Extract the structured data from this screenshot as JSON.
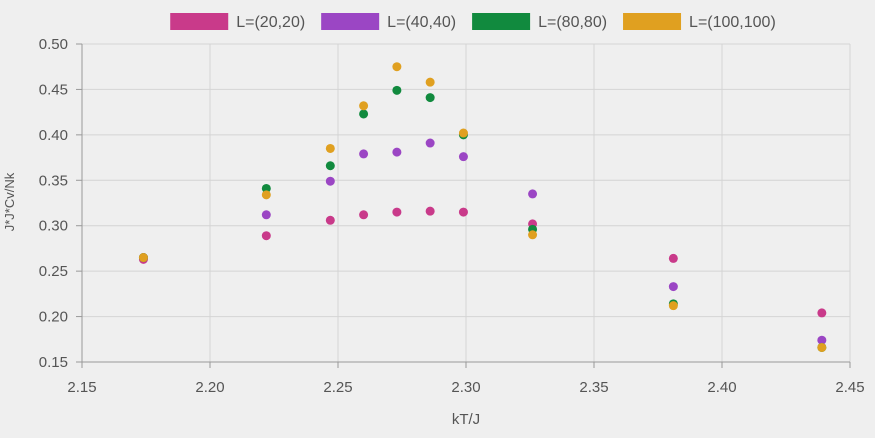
{
  "chart_data": {
    "type": "scatter",
    "xlabel": "kT/J",
    "ylabel": "J*J*Cv/Nk",
    "xlim": [
      2.15,
      2.45
    ],
    "ylim": [
      0.15,
      0.5
    ],
    "xticks": [
      "2.15",
      "2.20",
      "2.25",
      "2.30",
      "2.35",
      "2.40",
      "2.45"
    ],
    "yticks": [
      "0.15",
      "0.20",
      "0.25",
      "0.30",
      "0.35",
      "0.40",
      "0.45",
      "0.50"
    ],
    "grid": true,
    "legend_position": "top",
    "x": [
      2.174,
      2.222,
      2.247,
      2.26,
      2.273,
      2.286,
      2.299,
      2.326,
      2.381,
      2.439
    ],
    "series": [
      {
        "name": "L=(20,20)",
        "color": "#c93a8a",
        "values": [
          0.263,
          0.289,
          0.306,
          0.312,
          0.315,
          0.316,
          0.315,
          0.302,
          0.264,
          0.204
        ]
      },
      {
        "name": "L=(40,40)",
        "color": "#9b46c4",
        "values": [
          0.265,
          0.312,
          0.349,
          0.379,
          0.381,
          0.391,
          0.376,
          0.335,
          0.233,
          0.174
        ]
      },
      {
        "name": "L=(80,80)",
        "color": "#118a3e",
        "values": [
          0.265,
          0.341,
          0.366,
          0.423,
          0.449,
          0.441,
          0.4,
          0.296,
          0.214,
          0.166
        ]
      },
      {
        "name": "L=(100,100)",
        "color": "#e0a020",
        "values": [
          0.265,
          0.334,
          0.385,
          0.432,
          0.475,
          0.458,
          0.402,
          0.29,
          0.212,
          0.166
        ]
      }
    ]
  }
}
